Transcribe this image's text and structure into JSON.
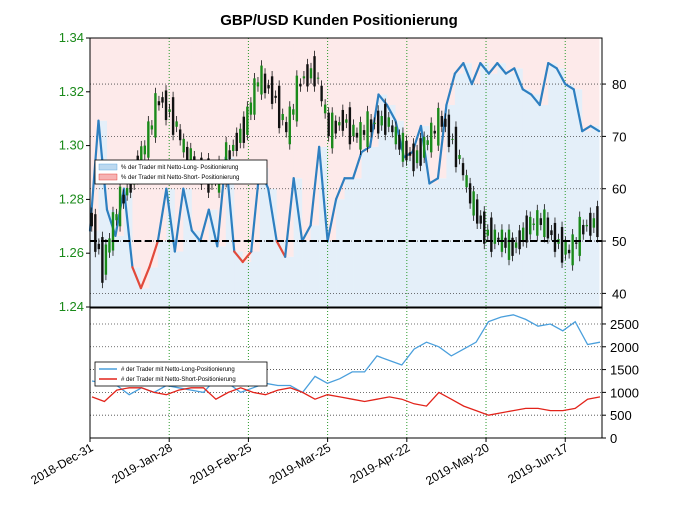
{
  "chart_data": {
    "type": "line",
    "title": "GBP/USD Kunden Positionierung",
    "x_ticks": [
      "2018-Dec-31",
      "2019-Jan-28",
      "2019-Feb-25",
      "2019-Mar-25",
      "2019-Apr-22",
      "2019-May-20",
      "2019-Jun-17"
    ],
    "x_range": [
      "2018-Dec-31",
      "2019-Jun-30"
    ],
    "top_panel": {
      "left_axis": {
        "ticks": [
          1.24,
          1.26,
          1.28,
          1.3,
          1.32,
          1.34
        ],
        "range": [
          1.24,
          1.34
        ],
        "color": "#1a8a1a"
      },
      "right_axis": {
        "ticks": [
          40,
          50,
          60,
          70,
          80
        ],
        "range": [
          37.4,
          88.8
        ]
      },
      "reference_line": 50,
      "legend": {
        "placement": "left",
        "entries": [
          {
            "label": "% der Trader mit Netto-Long- Positionierung",
            "color": "#bcd9f0"
          },
          {
            "label": "% der Trader mit Netto-Short- Positionierung",
            "color": "#f6b3b3"
          }
        ]
      },
      "sentiment_series": {
        "x": [
          "2018-Dec-31",
          "2019-Jan-03",
          "2019-Jan-06",
          "2019-Jan-09",
          "2019-Jan-12",
          "2019-Jan-15",
          "2019-Jan-18",
          "2019-Jan-21",
          "2019-Jan-24",
          "2019-Jan-27",
          "2019-Jan-30",
          "2019-Feb-02",
          "2019-Feb-05",
          "2019-Feb-08",
          "2019-Feb-11",
          "2019-Feb-14",
          "2019-Feb-17",
          "2019-Feb-20",
          "2019-Feb-23",
          "2019-Feb-26",
          "2019-Mar-01",
          "2019-Mar-04",
          "2019-Mar-07",
          "2019-Mar-10",
          "2019-Mar-13",
          "2019-Mar-16",
          "2019-Mar-19",
          "2019-Mar-22",
          "2019-Mar-25",
          "2019-Mar-28",
          "2019-Mar-31",
          "2019-Apr-03",
          "2019-Apr-06",
          "2019-Apr-09",
          "2019-Apr-12",
          "2019-Apr-15",
          "2019-Apr-18",
          "2019-Apr-21",
          "2019-Apr-24",
          "2019-Apr-27",
          "2019-Apr-30",
          "2019-May-03",
          "2019-May-06",
          "2019-May-09",
          "2019-May-12",
          "2019-May-15",
          "2019-May-18",
          "2019-May-21",
          "2019-May-24",
          "2019-May-27",
          "2019-May-30",
          "2019-Jun-02",
          "2019-Jun-05",
          "2019-Jun-08",
          "2019-Jun-11",
          "2019-Jun-14",
          "2019-Jun-17",
          "2019-Jun-20",
          "2019-Jun-23",
          "2019-Jun-26",
          "2019-Jun-29"
        ],
        "values": [
          52,
          73,
          56,
          51,
          60,
          45,
          41,
          45,
          50,
          60,
          48,
          60,
          52,
          50,
          56,
          49,
          66,
          48,
          46,
          48,
          64,
          60,
          50,
          47,
          62,
          50,
          53,
          68,
          50,
          58,
          62,
          62,
          67,
          68,
          78,
          76,
          73,
          66,
          67,
          72,
          61,
          62,
          76,
          82,
          84,
          80,
          84,
          82,
          84,
          82,
          83,
          79,
          78,
          76,
          84,
          83,
          80,
          79,
          71,
          72,
          71
        ]
      },
      "price_series": {
        "x": [
          "2018-Dec-31",
          "2019-Jan-05",
          "2019-Jan-10",
          "2019-Jan-15",
          "2019-Jan-20",
          "2019-Jan-25",
          "2019-Jan-30",
          "2019-Feb-04",
          "2019-Feb-09",
          "2019-Feb-14",
          "2019-Feb-19",
          "2019-Feb-24",
          "2019-Mar-01",
          "2019-Mar-06",
          "2019-Mar-11",
          "2019-Mar-16",
          "2019-Mar-21",
          "2019-Mar-26",
          "2019-Mar-31",
          "2019-Apr-05",
          "2019-Apr-10",
          "2019-Apr-15",
          "2019-Apr-20",
          "2019-Apr-25",
          "2019-Apr-30",
          "2019-May-05",
          "2019-May-10",
          "2019-May-15",
          "2019-May-20",
          "2019-May-25",
          "2019-May-30",
          "2019-Jun-04",
          "2019-Jun-09",
          "2019-Jun-14",
          "2019-Jun-19",
          "2019-Jun-24",
          "2019-Jun-29"
        ],
        "values": [
          1.275,
          1.255,
          1.276,
          1.287,
          1.3,
          1.318,
          1.31,
          1.294,
          1.29,
          1.287,
          1.298,
          1.307,
          1.325,
          1.32,
          1.305,
          1.325,
          1.328,
          1.305,
          1.31,
          1.303,
          1.308,
          1.31,
          1.3,
          1.295,
          1.302,
          1.31,
          1.298,
          1.28,
          1.268,
          1.265,
          1.262,
          1.27,
          1.272,
          1.265,
          1.26,
          1.27,
          1.272
        ]
      }
    },
    "bottom_panel": {
      "right_axis": {
        "ticks": [
          0,
          500,
          1000,
          1500,
          2000,
          2500
        ],
        "range": [
          0,
          2850
        ]
      },
      "legend": {
        "placement": "left",
        "entries": [
          {
            "label": "# der Trader mit Netto-Long-Positionierung",
            "color": "#4a9fdc"
          },
          {
            "label": "# der Trader mit Netto-Short-Positionierung",
            "color": "#e2231a"
          }
        ]
      },
      "series": [
        {
          "name": "# der Trader mit Netto-Long-Positionierung",
          "values": [
            1250,
            1200,
            1150,
            950,
            1100,
            1000,
            1150,
            1100,
            1050,
            1000,
            1300,
            1200,
            1000,
            1100,
            1200,
            1150,
            1150,
            1000,
            1350,
            1200,
            1300,
            1450,
            1450,
            1800,
            1700,
            1600,
            1950,
            2100,
            2000,
            1800,
            1950,
            2100,
            2550,
            2650,
            2700,
            2600,
            2450,
            2500,
            2350,
            2550,
            2050,
            2100
          ]
        },
        {
          "name": "# der Trader mit Netto-Short-Positionierung",
          "values": [
            900,
            800,
            1050,
            1100,
            1100,
            1000,
            950,
            1050,
            1100,
            1100,
            850,
            1000,
            1100,
            1000,
            950,
            1050,
            1100,
            1000,
            850,
            950,
            900,
            850,
            800,
            850,
            900,
            850,
            750,
            700,
            1000,
            850,
            700,
            600,
            500,
            550,
            600,
            650,
            650,
            600,
            600,
            650,
            850,
            900
          ]
        }
      ]
    }
  }
}
